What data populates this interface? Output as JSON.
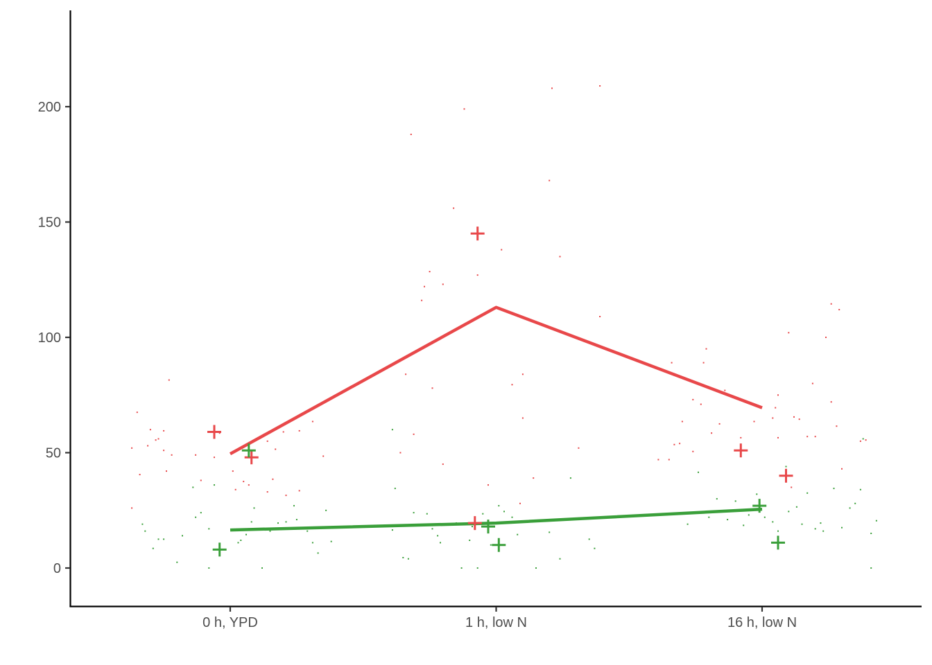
{
  "chart_data": {
    "type": "scatter",
    "title": "",
    "xlabel": "",
    "ylabel": "",
    "categories": [
      "0 h, YPD",
      "1 h, low N",
      "16 h, low N"
    ],
    "ylim": [
      -16.5,
      242
    ],
    "yticks": [
      0,
      50,
      100,
      150,
      200
    ],
    "grid": false,
    "legend": "none",
    "series": [
      {
        "color": "#e8484a",
        "mean_line": [
          49.5,
          113,
          69.5
        ],
        "crosses": [
          {
            "x": -0.06,
            "y": 59
          },
          {
            "x": 0.08,
            "y": 48
          },
          {
            "x": 0.92,
            "y": 19.5
          },
          {
            "x": 0.93,
            "y": 145
          },
          {
            "x": 1.92,
            "y": 51
          },
          {
            "x": 2.09,
            "y": 40
          }
        ],
        "points": [
          {
            "x": -0.37,
            "y": 26
          },
          {
            "x": -0.37,
            "y": 52
          },
          {
            "x": -0.35,
            "y": 67.5
          },
          {
            "x": -0.34,
            "y": 40.5
          },
          {
            "x": -0.31,
            "y": 53
          },
          {
            "x": -0.3,
            "y": 60
          },
          {
            "x": -0.28,
            "y": 55.5
          },
          {
            "x": -0.27,
            "y": 56
          },
          {
            "x": -0.25,
            "y": 51
          },
          {
            "x": -0.25,
            "y": 59.5
          },
          {
            "x": -0.24,
            "y": 42
          },
          {
            "x": -0.23,
            "y": 81.5
          },
          {
            "x": -0.22,
            "y": 49
          },
          {
            "x": -0.13,
            "y": 49
          },
          {
            "x": -0.11,
            "y": 38
          },
          {
            "x": -0.06,
            "y": 48
          },
          {
            "x": -0.04,
            "y": 58.5
          },
          {
            "x": 0.01,
            "y": 42
          },
          {
            "x": 0.02,
            "y": 34
          },
          {
            "x": 0.05,
            "y": 37.5
          },
          {
            "x": 0.07,
            "y": 36
          },
          {
            "x": 0.14,
            "y": 33
          },
          {
            "x": 0.14,
            "y": 55
          },
          {
            "x": 0.16,
            "y": 38.5
          },
          {
            "x": 0.17,
            "y": 51.5
          },
          {
            "x": 0.21,
            "y": 31.5
          },
          {
            "x": 0.2,
            "y": 59
          },
          {
            "x": 0.26,
            "y": 59.5
          },
          {
            "x": 0.26,
            "y": 33.5
          },
          {
            "x": 0.31,
            "y": 63.5
          },
          {
            "x": 0.35,
            "y": 48.5
          },
          {
            "x": 0.66,
            "y": 84
          },
          {
            "x": 0.68,
            "y": 188
          },
          {
            "x": 0.64,
            "y": 50
          },
          {
            "x": 0.69,
            "y": 58
          },
          {
            "x": 0.72,
            "y": 116
          },
          {
            "x": 0.73,
            "y": 122
          },
          {
            "x": 0.75,
            "y": 128.5
          },
          {
            "x": 0.76,
            "y": 78
          },
          {
            "x": 0.8,
            "y": 123
          },
          {
            "x": 0.8,
            "y": 45
          },
          {
            "x": 0.84,
            "y": 156
          },
          {
            "x": 0.88,
            "y": 199
          },
          {
            "x": 0.93,
            "y": 127
          },
          {
            "x": 0.97,
            "y": 36
          },
          {
            "x": 1.02,
            "y": 138
          },
          {
            "x": 1.06,
            "y": 79.5
          },
          {
            "x": 1.09,
            "y": 28
          },
          {
            "x": 1.1,
            "y": 65
          },
          {
            "x": 1.1,
            "y": 84
          },
          {
            "x": 1.14,
            "y": 39
          },
          {
            "x": 1.2,
            "y": 168
          },
          {
            "x": 1.21,
            "y": 208
          },
          {
            "x": 1.24,
            "y": 135
          },
          {
            "x": 1.31,
            "y": 52
          },
          {
            "x": 1.39,
            "y": 209
          },
          {
            "x": 1.39,
            "y": 109
          },
          {
            "x": 1.61,
            "y": 47
          },
          {
            "x": 1.66,
            "y": 89
          },
          {
            "x": 1.65,
            "y": 47
          },
          {
            "x": 1.67,
            "y": 53.5
          },
          {
            "x": 1.69,
            "y": 54
          },
          {
            "x": 1.7,
            "y": 63.5
          },
          {
            "x": 1.74,
            "y": 73
          },
          {
            "x": 1.74,
            "y": 50.5
          },
          {
            "x": 1.77,
            "y": 71
          },
          {
            "x": 1.78,
            "y": 89
          },
          {
            "x": 1.79,
            "y": 95
          },
          {
            "x": 1.81,
            "y": 58.5
          },
          {
            "x": 1.84,
            "y": 62.5
          },
          {
            "x": 1.86,
            "y": 77
          },
          {
            "x": 1.89,
            "y": 74
          },
          {
            "x": 1.92,
            "y": 56.5
          },
          {
            "x": 1.97,
            "y": 63.5
          },
          {
            "x": 2.05,
            "y": 69.5
          },
          {
            "x": 2.06,
            "y": 75
          },
          {
            "x": 2.04,
            "y": 65
          },
          {
            "x": 2.06,
            "y": 56.5
          },
          {
            "x": 2.1,
            "y": 102
          },
          {
            "x": 2.11,
            "y": 35
          },
          {
            "x": 2.12,
            "y": 65.5
          },
          {
            "x": 2.14,
            "y": 64.5
          },
          {
            "x": 2.17,
            "y": 57
          },
          {
            "x": 2.19,
            "y": 80
          },
          {
            "x": 2.2,
            "y": 57
          },
          {
            "x": 2.26,
            "y": 114.5
          },
          {
            "x": 2.3,
            "y": 43
          },
          {
            "x": 2.24,
            "y": 100
          },
          {
            "x": 2.26,
            "y": 72
          },
          {
            "x": 2.28,
            "y": 61.5
          },
          {
            "x": 2.29,
            "y": 112
          },
          {
            "x": 2.37,
            "y": 55
          },
          {
            "x": 2.39,
            "y": 55.5
          }
        ]
      },
      {
        "color": "#3a9f3a",
        "mean_line": [
          16.5,
          19.5,
          25.5
        ],
        "crosses": [
          {
            "x": -0.04,
            "y": 8
          },
          {
            "x": 0.07,
            "y": 51
          },
          {
            "x": 0.97,
            "y": 18
          },
          {
            "x": 1.01,
            "y": 10
          },
          {
            "x": 1.99,
            "y": 27
          },
          {
            "x": 2.06,
            "y": 11
          }
        ],
        "points": [
          {
            "x": -0.33,
            "y": 19
          },
          {
            "x": -0.32,
            "y": 16
          },
          {
            "x": -0.29,
            "y": 8.5
          },
          {
            "x": -0.27,
            "y": 12.5
          },
          {
            "x": -0.25,
            "y": 12.5
          },
          {
            "x": -0.2,
            "y": 2.5
          },
          {
            "x": -0.18,
            "y": 14
          },
          {
            "x": -0.14,
            "y": 35
          },
          {
            "x": -0.13,
            "y": 22
          },
          {
            "x": -0.11,
            "y": 24
          },
          {
            "x": -0.08,
            "y": 17
          },
          {
            "x": -0.06,
            "y": 36
          },
          {
            "x": -0.08,
            "y": 0
          },
          {
            "x": 0.03,
            "y": 11
          },
          {
            "x": 0.04,
            "y": 12
          },
          {
            "x": 0.06,
            "y": 14.5
          },
          {
            "x": 0.08,
            "y": 20
          },
          {
            "x": 0.09,
            "y": 26
          },
          {
            "x": 0.12,
            "y": 0
          },
          {
            "x": 0.15,
            "y": 16
          },
          {
            "x": 0.18,
            "y": 19.5
          },
          {
            "x": 0.21,
            "y": 20
          },
          {
            "x": 0.24,
            "y": 27
          },
          {
            "x": 0.25,
            "y": 21
          },
          {
            "x": 0.27,
            "y": 17
          },
          {
            "x": 0.29,
            "y": 16
          },
          {
            "x": 0.31,
            "y": 11
          },
          {
            "x": 0.33,
            "y": 6.5
          },
          {
            "x": 0.36,
            "y": 25
          },
          {
            "x": 0.38,
            "y": 11.5
          },
          {
            "x": 0.61,
            "y": 60
          },
          {
            "x": 0.61,
            "y": 16.5
          },
          {
            "x": 0.62,
            "y": 34.5
          },
          {
            "x": 0.65,
            "y": 4.5
          },
          {
            "x": 0.67,
            "y": 4
          },
          {
            "x": 0.69,
            "y": 24
          },
          {
            "x": 0.71,
            "y": 18.5
          },
          {
            "x": 0.74,
            "y": 23.5
          },
          {
            "x": 0.76,
            "y": 17
          },
          {
            "x": 0.78,
            "y": 14
          },
          {
            "x": 0.79,
            "y": 11
          },
          {
            "x": 0.81,
            "y": 19
          },
          {
            "x": 0.85,
            "y": 19.5
          },
          {
            "x": 0.87,
            "y": 0
          },
          {
            "x": 0.9,
            "y": 12
          },
          {
            "x": 0.91,
            "y": 18
          },
          {
            "x": 0.93,
            "y": 0
          },
          {
            "x": 0.95,
            "y": 23.5
          },
          {
            "x": 0.98,
            "y": 10
          },
          {
            "x": 1.01,
            "y": 27
          },
          {
            "x": 1.03,
            "y": 24.5
          },
          {
            "x": 1.06,
            "y": 22
          },
          {
            "x": 1.08,
            "y": 14.5
          },
          {
            "x": 1.15,
            "y": 0
          },
          {
            "x": 1.2,
            "y": 15.5
          },
          {
            "x": 1.24,
            "y": 4
          },
          {
            "x": 1.28,
            "y": 39
          },
          {
            "x": 1.35,
            "y": 12.5
          },
          {
            "x": 1.37,
            "y": 8.5
          },
          {
            "x": 1.72,
            "y": 19
          },
          {
            "x": 1.76,
            "y": 41.5
          },
          {
            "x": 1.8,
            "y": 22
          },
          {
            "x": 1.83,
            "y": 30
          },
          {
            "x": 1.87,
            "y": 21
          },
          {
            "x": 1.9,
            "y": 29
          },
          {
            "x": 1.93,
            "y": 18.5
          },
          {
            "x": 1.95,
            "y": 23
          },
          {
            "x": 1.98,
            "y": 32
          },
          {
            "x": 2.01,
            "y": 22
          },
          {
            "x": 2.04,
            "y": 20
          },
          {
            "x": 2.06,
            "y": 16
          },
          {
            "x": 2.09,
            "y": 44
          },
          {
            "x": 2.1,
            "y": 24.5
          },
          {
            "x": 2.13,
            "y": 26.5
          },
          {
            "x": 2.15,
            "y": 19
          },
          {
            "x": 2.17,
            "y": 32.5
          },
          {
            "x": 2.2,
            "y": 17
          },
          {
            "x": 2.22,
            "y": 19.5
          },
          {
            "x": 2.23,
            "y": 16
          },
          {
            "x": 2.27,
            "y": 34.5
          },
          {
            "x": 2.33,
            "y": 26
          },
          {
            "x": 2.35,
            "y": 28
          },
          {
            "x": 2.37,
            "y": 34
          },
          {
            "x": 2.41,
            "y": 15
          },
          {
            "x": 2.38,
            "y": 56
          },
          {
            "x": 2.41,
            "y": 0
          },
          {
            "x": 2.43,
            "y": 20.5
          },
          {
            "x": 2.3,
            "y": 17.5
          }
        ]
      }
    ]
  }
}
